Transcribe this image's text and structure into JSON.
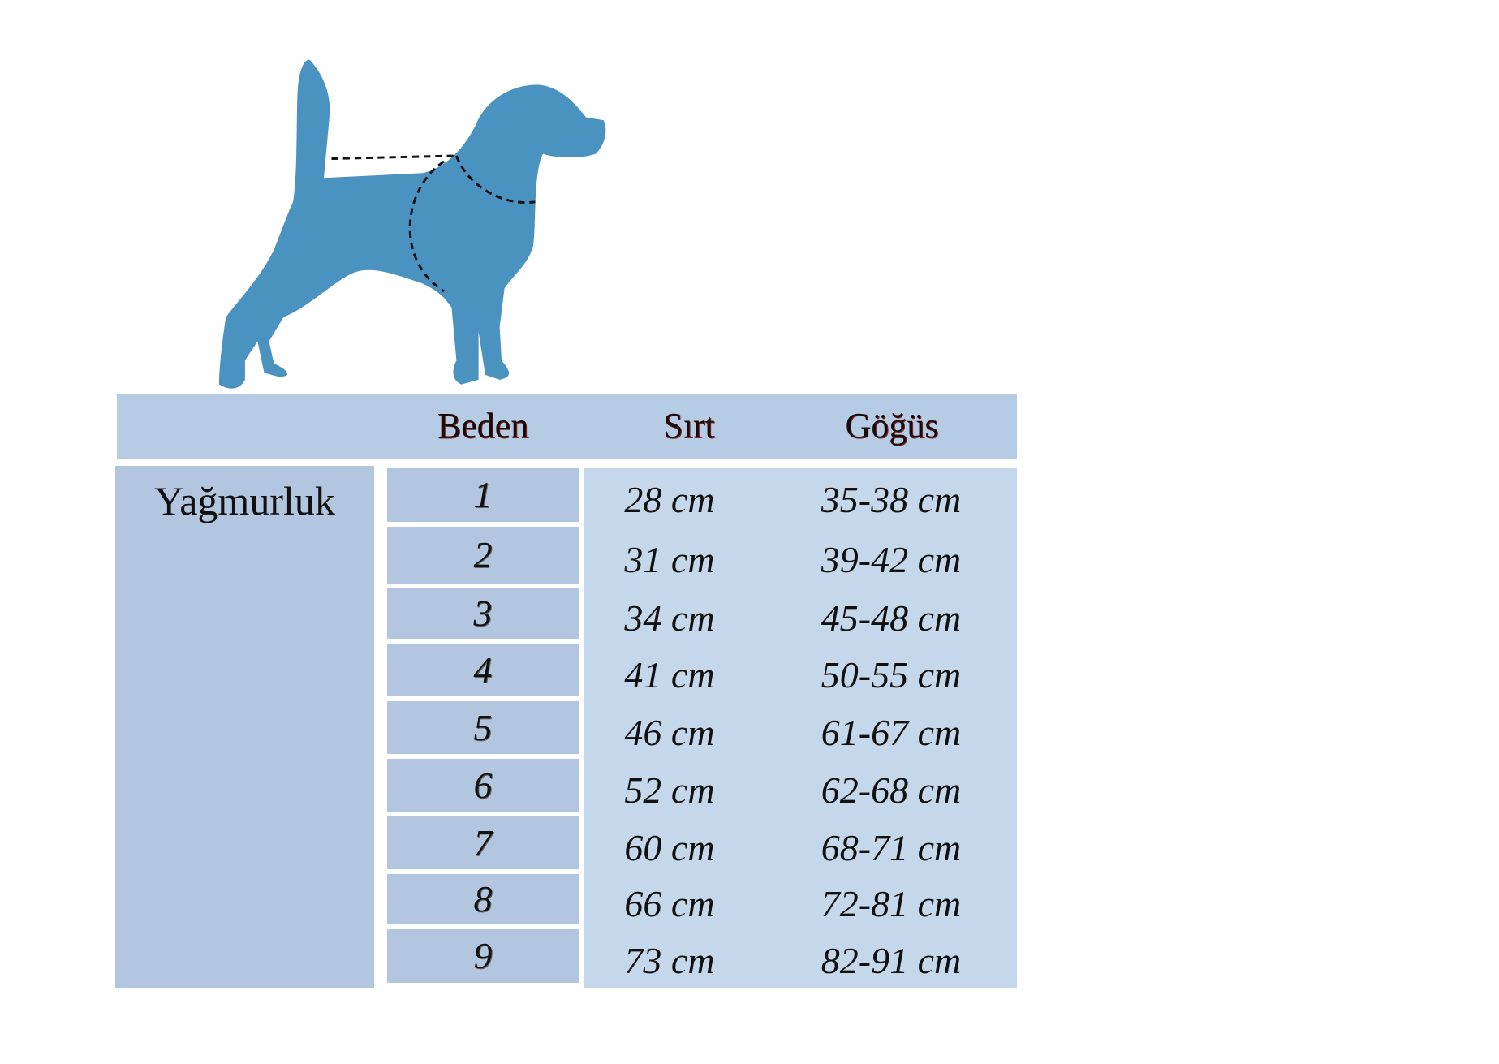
{
  "colors": {
    "dog": "#4a92c0",
    "header": "#b6cce4",
    "left_column": "#b3c6df",
    "values_panel": "#c5d7ea"
  },
  "illustration": {
    "icon": "dog-silhouette-with-measurement-lines-icon"
  },
  "table": {
    "headers": {
      "empty": "",
      "size": "Beden",
      "back": "Sırt",
      "chest": "Göğüs"
    },
    "product": "Yağmurluk",
    "rows": [
      {
        "size": "1",
        "back": "28 cm",
        "chest": "35-38 cm"
      },
      {
        "size": "2",
        "back": "31 cm",
        "chest": "39-42 cm"
      },
      {
        "size": "3",
        "back": "34 cm",
        "chest": "45-48 cm"
      },
      {
        "size": "4",
        "back": "41 cm",
        "chest": "50-55 cm"
      },
      {
        "size": "5",
        "back": "46 cm",
        "chest": "61-67 cm"
      },
      {
        "size": "6",
        "back": "52 cm",
        "chest": "62-68 cm"
      },
      {
        "size": "7",
        "back": "60 cm",
        "chest": "68-71 cm"
      },
      {
        "size": "8",
        "back": "66 cm",
        "chest": "72-81 cm"
      },
      {
        "size": "9",
        "back": "73 cm",
        "chest": "82-91 cm"
      }
    ]
  }
}
